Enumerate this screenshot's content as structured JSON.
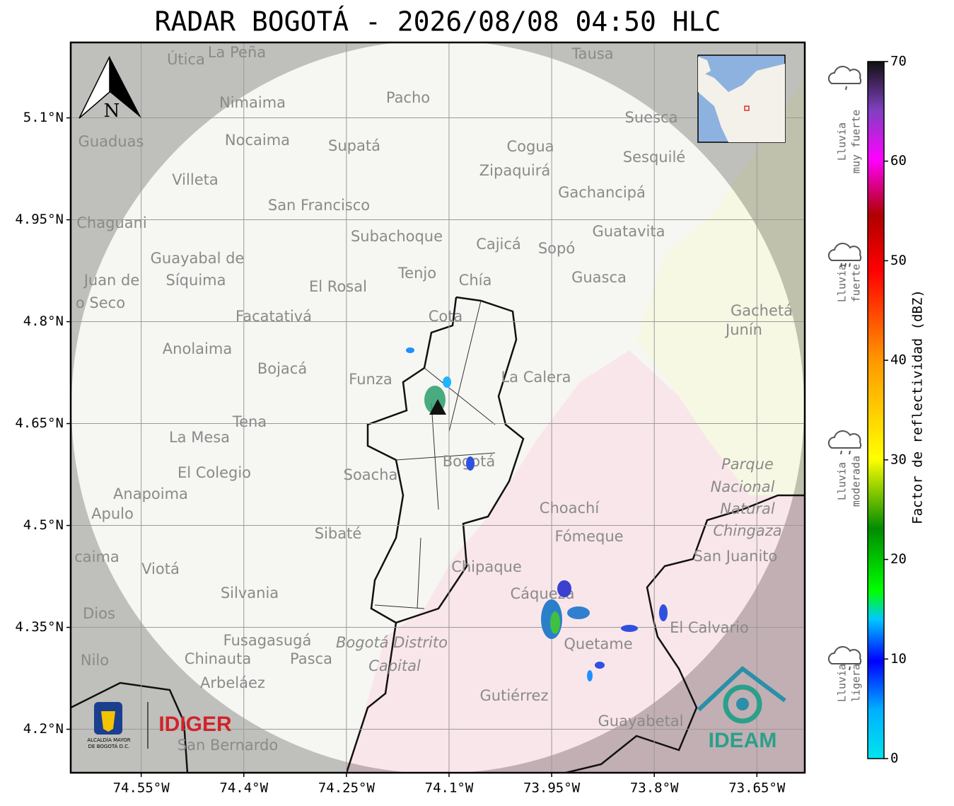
{
  "map": {
    "title": "RADAR BOGOTÁ - 2026/08/08 04:50 HLC",
    "lonlim": [
      -74.653,
      -73.58
    ],
    "latlim": [
      4.136,
      5.211
    ],
    "lat_ticks": [
      {
        "value": 5.1,
        "label": "5.1°N"
      },
      {
        "value": 4.95,
        "label": "4.95°N"
      },
      {
        "value": 4.8,
        "label": "4.8°N"
      },
      {
        "value": 4.65,
        "label": "4.65°N"
      },
      {
        "value": 4.5,
        "label": "4.5°N"
      },
      {
        "value": 4.35,
        "label": "4.35°N"
      },
      {
        "value": 4.2,
        "label": "4.2°N"
      }
    ],
    "lon_ticks": [
      {
        "value": -74.55,
        "label": "74.55°W"
      },
      {
        "value": -74.4,
        "label": "74.4°W"
      },
      {
        "value": -74.25,
        "label": "74.25°W"
      },
      {
        "value": -74.1,
        "label": "74.1°W"
      },
      {
        "value": -73.95,
        "label": "73.95°W"
      },
      {
        "value": -73.8,
        "label": "73.8°W"
      },
      {
        "value": -73.65,
        "label": "73.65°W"
      }
    ],
    "north": "N",
    "places": [
      "Útica",
      "La Peña",
      "Tausa",
      "Pacho",
      "Nimaima",
      "Guaduas",
      "Nocaima",
      "Supatá",
      "Cogua",
      "Suesca",
      "Sesquilé",
      "Zipaquirá",
      "Villeta",
      "Gachancipá",
      "San Francisco",
      "Chaguani",
      "Subachoque",
      "Cajicá",
      "Sopó",
      "Guatavita",
      "Guayabal de",
      "Síquima",
      "Tenjo",
      "Chía",
      "Guasca",
      "Juan de",
      "o Seco",
      "El Rosal",
      "Facatativá",
      "Cota",
      "Gachetá",
      "Junín",
      "Anolaima",
      "Bojacá",
      "Funza",
      "La Calera",
      "Tena",
      "La Mesa",
      "El Colegio",
      "Bogotá",
      "Soacha",
      "Parque",
      "Nacional",
      "Natural",
      "Chingaza",
      "Anapoima",
      "Apulo",
      "Choachí",
      "Fómeque",
      "Sibaté",
      "San Juanito",
      "caima",
      "Viotá",
      "Chipaque",
      "Silvania",
      "Cáqueza",
      "El Calvario",
      "Dios",
      "Quetame",
      "Fusagasugá",
      "Bogotá Distrito",
      "Capital",
      "Nilo",
      "Chinauta",
      "Pasca",
      "Arbeláez",
      "Gutiérrez",
      "Guayabetal",
      "San Bernardo"
    ],
    "logos": {
      "alcaldia": [
        "ALCALDÍA MAYOR",
        "DE BOGOTÁ D.C."
      ],
      "idiger": "IDIGER",
      "ideam": "IDEAM"
    }
  },
  "colorbar": {
    "label": "Factor de reflectividad (dBZ)",
    "lim": [
      0,
      70
    ],
    "ticks": [
      0,
      10,
      20,
      30,
      40,
      50,
      60,
      70
    ]
  },
  "rain_levels": [
    {
      "lines": [
        "Lluvia",
        "muy fuerte"
      ]
    },
    {
      "lines": [
        "Lluvia",
        "fuerte"
      ]
    },
    {
      "lines": [
        "Lluvia",
        "moderada"
      ]
    },
    {
      "lines": [
        "Lluvia",
        "ligera"
      ]
    }
  ]
}
